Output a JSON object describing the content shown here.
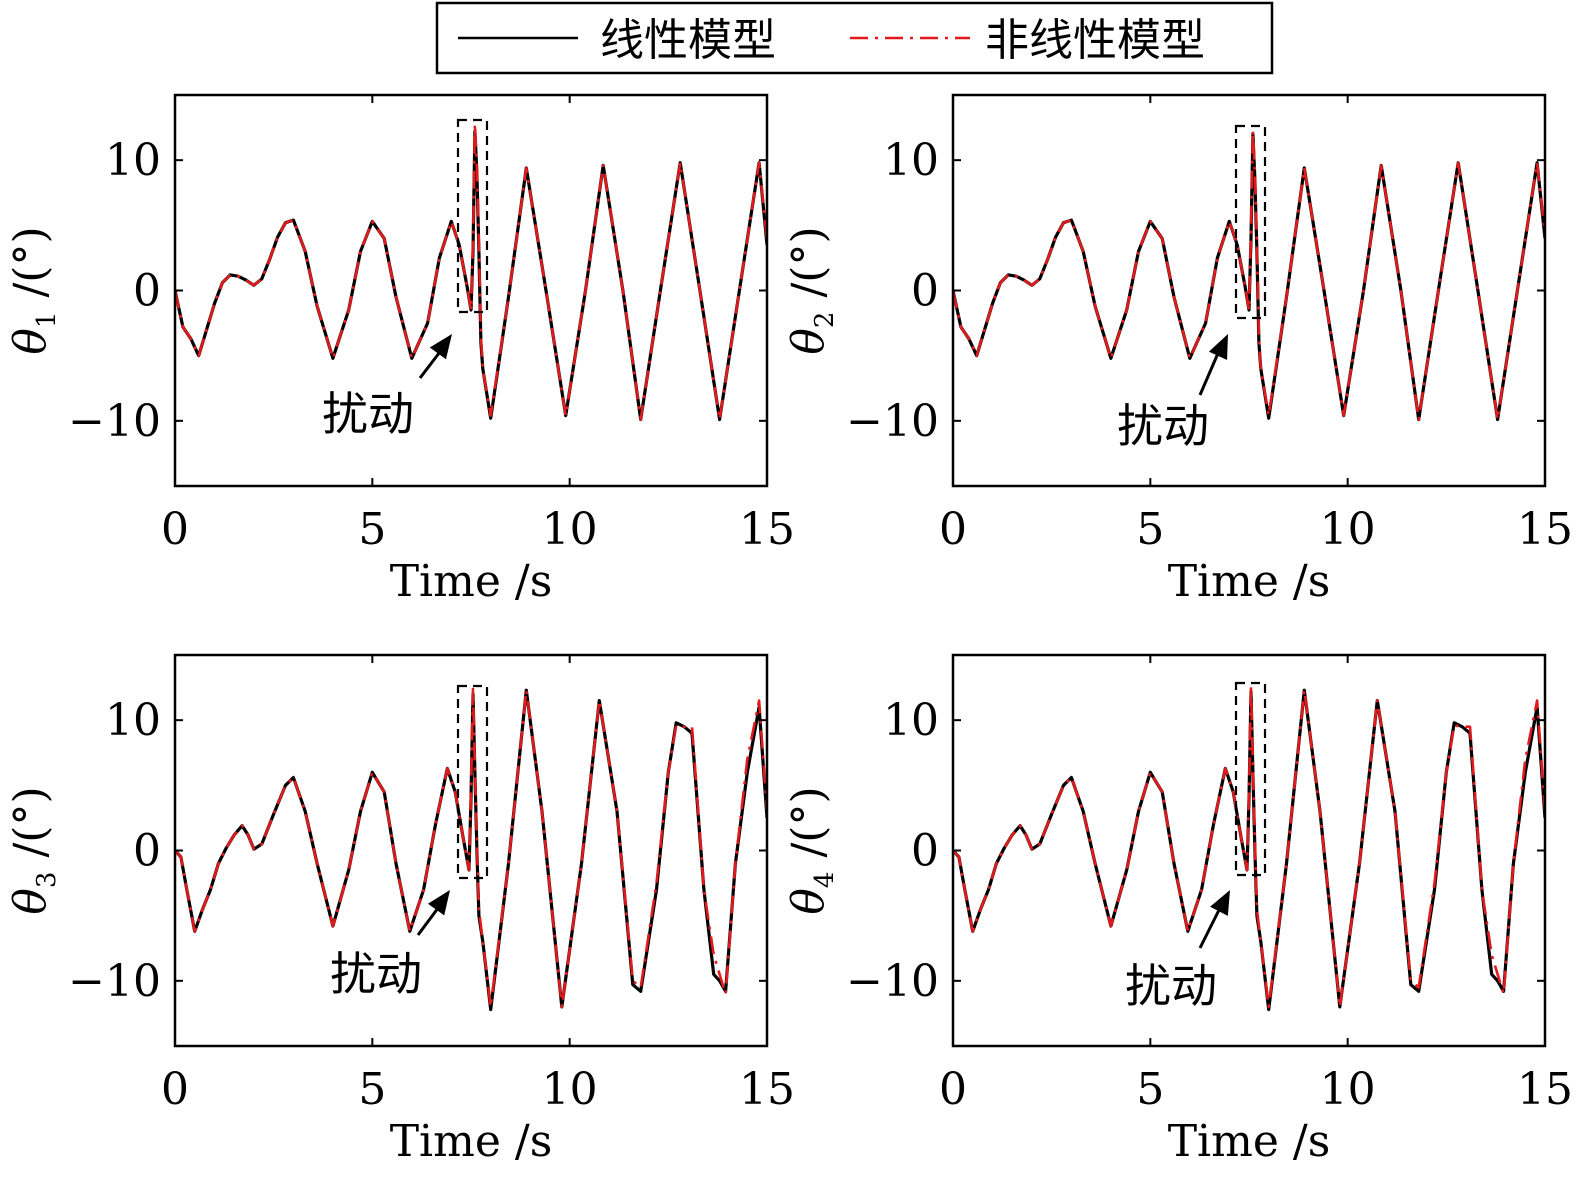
{
  "legend": {
    "linear_label": "线性模型",
    "nonlinear_label": "非线性模型"
  },
  "colors": {
    "linear": "#000000",
    "nonlinear": "#e31a1c",
    "axis": "#000000"
  },
  "chart_data": [
    {
      "type": "line",
      "ylabel_symbol": "θ",
      "ylabel_sub": "1",
      "ylabel_unit": "/(°)",
      "xlabel": "Time /s",
      "xlim": [
        0,
        15
      ],
      "ylim": [
        -15,
        15
      ],
      "xticks": [
        0,
        5,
        10,
        15
      ],
      "yticks": [
        -10,
        0,
        10
      ],
      "ytick_labels": [
        "−10",
        "0",
        "10"
      ],
      "annotation": "扰动",
      "x": [
        0,
        0.2,
        0.4,
        0.6,
        0.8,
        1.0,
        1.2,
        1.4,
        1.6,
        1.8,
        2.0,
        2.2,
        2.4,
        2.6,
        2.8,
        3.0,
        3.3,
        3.6,
        4.0,
        4.4,
        4.7,
        5.0,
        5.3,
        5.6,
        6.0,
        6.4,
        6.7,
        7.0,
        7.2,
        7.4,
        7.5,
        7.55,
        7.6,
        7.65,
        7.7,
        7.75,
        7.8,
        8.0,
        8.45,
        8.9,
        9.4,
        9.9,
        10.4,
        10.85,
        11.35,
        11.8,
        12.3,
        12.8,
        13.3,
        13.8,
        14.3,
        14.8,
        15.0
      ],
      "series": [
        {
          "name": "线性模型",
          "values": [
            0,
            -2.8,
            -3.7,
            -5.0,
            -3.0,
            -1.0,
            0.6,
            1.2,
            1.1,
            0.8,
            0.4,
            0.9,
            2.4,
            4.1,
            5.2,
            5.4,
            3.0,
            -1.2,
            -5.2,
            -1.5,
            3.0,
            5.3,
            4.0,
            -0.5,
            -5.2,
            -2.5,
            2.5,
            5.3,
            3.5,
            0.3,
            -1.5,
            3.0,
            12.2,
            9.0,
            3.0,
            -4.0,
            -6.0,
            -9.8,
            -0.5,
            9.4,
            0.0,
            -9.6,
            0.0,
            9.6,
            0.0,
            -9.9,
            0.0,
            9.8,
            0.0,
            -9.9,
            0.0,
            9.8,
            3.5
          ]
        },
        {
          "name": "非线性模型",
          "values": [
            0,
            -2.8,
            -3.7,
            -5.0,
            -3.0,
            -1.0,
            0.6,
            1.2,
            1.1,
            0.8,
            0.4,
            0.9,
            2.4,
            4.1,
            5.2,
            5.4,
            3.0,
            -1.2,
            -5.2,
            -1.5,
            3.0,
            5.3,
            4.0,
            -0.5,
            -5.2,
            -2.5,
            2.5,
            5.3,
            3.5,
            0.3,
            -1.5,
            3.5,
            12.8,
            9.5,
            3.5,
            -3.5,
            -6.0,
            -9.6,
            -0.5,
            9.4,
            0.0,
            -9.6,
            0.0,
            9.6,
            0.0,
            -9.9,
            0.0,
            9.8,
            0.0,
            -9.9,
            0.0,
            9.8,
            3.8
          ]
        }
      ]
    },
    {
      "type": "line",
      "ylabel_symbol": "θ",
      "ylabel_sub": "2",
      "ylabel_unit": "/(°)",
      "xlabel": "Time /s",
      "xlim": [
        0,
        15
      ],
      "ylim": [
        -15,
        15
      ],
      "xticks": [
        0,
        5,
        10,
        15
      ],
      "yticks": [
        -10,
        0,
        10
      ],
      "ytick_labels": [
        "−10",
        "0",
        "10"
      ],
      "annotation": "扰动",
      "x": [
        0,
        0.2,
        0.4,
        0.6,
        0.8,
        1.0,
        1.2,
        1.4,
        1.6,
        1.8,
        2.0,
        2.2,
        2.4,
        2.6,
        2.8,
        3.0,
        3.3,
        3.6,
        4.0,
        4.4,
        4.7,
        5.0,
        5.3,
        5.6,
        6.0,
        6.4,
        6.7,
        7.0,
        7.2,
        7.4,
        7.5,
        7.55,
        7.6,
        7.65,
        7.7,
        7.75,
        7.8,
        8.0,
        8.45,
        8.9,
        9.4,
        9.9,
        10.4,
        10.85,
        11.35,
        11.8,
        12.3,
        12.8,
        13.3,
        13.8,
        14.3,
        14.8,
        15.0
      ],
      "series": [
        {
          "name": "线性模型",
          "values": [
            0,
            -2.8,
            -3.7,
            -5.0,
            -3.0,
            -1.0,
            0.6,
            1.2,
            1.1,
            0.8,
            0.4,
            0.9,
            2.4,
            4.1,
            5.2,
            5.4,
            3.0,
            -1.2,
            -5.2,
            -1.5,
            3.0,
            5.3,
            4.0,
            -0.5,
            -5.2,
            -2.5,
            2.5,
            5.3,
            3.5,
            0.3,
            -1.5,
            4.0,
            12.0,
            8.5,
            3.0,
            -4.0,
            -6.0,
            -9.8,
            -0.5,
            9.4,
            0.0,
            -9.6,
            0.0,
            9.6,
            0.0,
            -9.9,
            0.0,
            9.8,
            0.0,
            -9.9,
            0.0,
            9.8,
            4.0
          ]
        },
        {
          "name": "非线性模型",
          "values": [
            0,
            -2.8,
            -3.7,
            -5.0,
            -3.0,
            -1.0,
            0.6,
            1.2,
            1.1,
            0.8,
            0.4,
            0.9,
            2.4,
            4.1,
            5.2,
            5.4,
            3.0,
            -1.2,
            -5.2,
            -1.5,
            3.0,
            5.3,
            4.0,
            -0.5,
            -5.2,
            -2.5,
            2.5,
            5.3,
            3.5,
            0.3,
            -1.5,
            4.5,
            12.3,
            9.0,
            3.5,
            -3.5,
            -6.0,
            -9.6,
            -0.5,
            9.4,
            0.0,
            -9.6,
            0.0,
            9.6,
            0.0,
            -9.9,
            0.0,
            9.8,
            0.0,
            -9.9,
            0.0,
            9.8,
            4.3
          ]
        }
      ]
    },
    {
      "type": "line",
      "ylabel_symbol": "θ",
      "ylabel_sub": "3",
      "ylabel_unit": "/(°)",
      "xlabel": "Time /s",
      "xlim": [
        0,
        15
      ],
      "ylim": [
        -15,
        15
      ],
      "xticks": [
        0,
        5,
        10,
        15
      ],
      "yticks": [
        -10,
        0,
        10
      ],
      "ytick_labels": [
        "−10",
        "0",
        "10"
      ],
      "annotation": "扰动",
      "x": [
        0,
        0.15,
        0.3,
        0.5,
        0.7,
        0.9,
        1.1,
        1.3,
        1.5,
        1.7,
        1.85,
        2.0,
        2.2,
        2.5,
        2.8,
        3.0,
        3.3,
        3.6,
        4.0,
        4.4,
        4.7,
        5.0,
        5.3,
        5.6,
        5.95,
        6.3,
        6.6,
        6.9,
        7.1,
        7.3,
        7.45,
        7.5,
        7.55,
        7.6,
        7.65,
        7.7,
        7.8,
        8.0,
        8.45,
        8.9,
        9.3,
        9.8,
        10.3,
        10.75,
        11.2,
        11.6,
        11.8,
        12.2,
        12.5,
        12.7,
        12.9,
        13.1,
        13.4,
        13.65,
        13.8,
        13.95,
        14.2,
        14.5,
        14.8,
        15.0
      ],
      "series": [
        {
          "name": "线性模型",
          "values": [
            0,
            -0.5,
            -3.0,
            -6.2,
            -4.5,
            -3.0,
            -1.0,
            0.2,
            1.2,
            1.9,
            1.2,
            0.1,
            0.5,
            2.8,
            5.0,
            5.6,
            3.0,
            -1.0,
            -5.8,
            -1.5,
            3.0,
            6.0,
            4.5,
            -1.0,
            -6.2,
            -3.0,
            2.0,
            6.3,
            4.5,
            1.0,
            -1.5,
            4.0,
            12.0,
            6.0,
            0.0,
            -5.0,
            -7.0,
            -12.2,
            -1.0,
            12.3,
            3.0,
            -12.0,
            -1.0,
            11.5,
            3.0,
            -10.3,
            -10.8,
            -3.0,
            6.0,
            9.8,
            9.5,
            9.0,
            -3.0,
            -9.5,
            -10.0,
            -10.8,
            -1.0,
            6.0,
            11.0,
            2.5
          ]
        },
        {
          "name": "非线性模型",
          "values": [
            0,
            -0.5,
            -3.0,
            -6.2,
            -4.5,
            -3.0,
            -1.0,
            0.2,
            1.2,
            1.9,
            1.2,
            0.1,
            0.5,
            2.8,
            5.0,
            5.6,
            3.0,
            -1.0,
            -5.8,
            -1.5,
            3.0,
            6.0,
            4.5,
            -1.0,
            -6.2,
            -3.0,
            2.0,
            6.3,
            4.5,
            1.0,
            -1.5,
            4.5,
            12.4,
            6.5,
            0.5,
            -4.5,
            -7.0,
            -12.0,
            -1.0,
            12.3,
            3.0,
            -12.0,
            -1.0,
            11.5,
            3.0,
            -10.0,
            -10.5,
            -2.5,
            6.0,
            9.6,
            9.5,
            9.5,
            -3.0,
            -8.0,
            -9.5,
            -11.0,
            -1.0,
            7.0,
            11.5,
            3.0
          ]
        }
      ]
    },
    {
      "type": "line",
      "ylabel_symbol": "θ",
      "ylabel_sub": "4",
      "ylabel_unit": "/(°)",
      "xlabel": "Time /s",
      "xlim": [
        0,
        15
      ],
      "ylim": [
        -15,
        15
      ],
      "xticks": [
        0,
        5,
        10,
        15
      ],
      "yticks": [
        -10,
        0,
        10
      ],
      "ytick_labels": [
        "−10",
        "0",
        "10"
      ],
      "annotation": "扰动",
      "x": [
        0,
        0.15,
        0.3,
        0.5,
        0.7,
        0.9,
        1.1,
        1.3,
        1.5,
        1.7,
        1.85,
        2.0,
        2.2,
        2.5,
        2.8,
        3.0,
        3.3,
        3.6,
        4.0,
        4.4,
        4.7,
        5.0,
        5.3,
        5.6,
        5.95,
        6.3,
        6.6,
        6.9,
        7.1,
        7.3,
        7.45,
        7.5,
        7.55,
        7.6,
        7.65,
        7.7,
        7.8,
        8.0,
        8.45,
        8.9,
        9.3,
        9.8,
        10.3,
        10.75,
        11.2,
        11.6,
        11.8,
        12.2,
        12.5,
        12.7,
        12.9,
        13.1,
        13.4,
        13.65,
        13.8,
        13.95,
        14.2,
        14.5,
        14.8,
        15.0
      ],
      "series": [
        {
          "name": "线性模型",
          "values": [
            0,
            -0.5,
            -3.0,
            -6.2,
            -4.5,
            -3.0,
            -1.0,
            0.2,
            1.2,
            1.9,
            1.2,
            0.1,
            0.5,
            2.8,
            5.0,
            5.6,
            3.0,
            -1.0,
            -5.8,
            -1.5,
            3.0,
            6.0,
            4.5,
            -1.0,
            -6.2,
            -3.0,
            2.0,
            6.3,
            4.5,
            1.0,
            -1.5,
            4.0,
            12.2,
            6.0,
            0.0,
            -5.0,
            -7.0,
            -12.2,
            -1.0,
            12.3,
            3.0,
            -12.0,
            -1.0,
            11.5,
            3.0,
            -10.3,
            -10.8,
            -3.0,
            6.0,
            9.8,
            9.5,
            9.0,
            -3.0,
            -9.5,
            -10.0,
            -10.8,
            -1.0,
            6.0,
            11.0,
            2.5
          ]
        },
        {
          "name": "非线性模型",
          "values": [
            0,
            -0.5,
            -3.0,
            -6.2,
            -4.5,
            -3.0,
            -1.0,
            0.2,
            1.2,
            1.9,
            1.2,
            0.1,
            0.5,
            2.8,
            5.0,
            5.6,
            3.0,
            -1.0,
            -5.8,
            -1.5,
            3.0,
            6.0,
            4.5,
            -1.0,
            -6.2,
            -3.0,
            2.0,
            6.3,
            4.5,
            1.0,
            -1.5,
            4.5,
            12.6,
            6.5,
            0.5,
            -4.5,
            -7.0,
            -12.0,
            -1.0,
            12.3,
            3.0,
            -12.0,
            -1.0,
            11.5,
            3.0,
            -10.0,
            -10.5,
            -2.5,
            6.0,
            9.6,
            9.5,
            9.5,
            -3.0,
            -8.0,
            -9.5,
            -11.0,
            -1.0,
            7.0,
            11.5,
            3.0
          ]
        }
      ]
    }
  ]
}
